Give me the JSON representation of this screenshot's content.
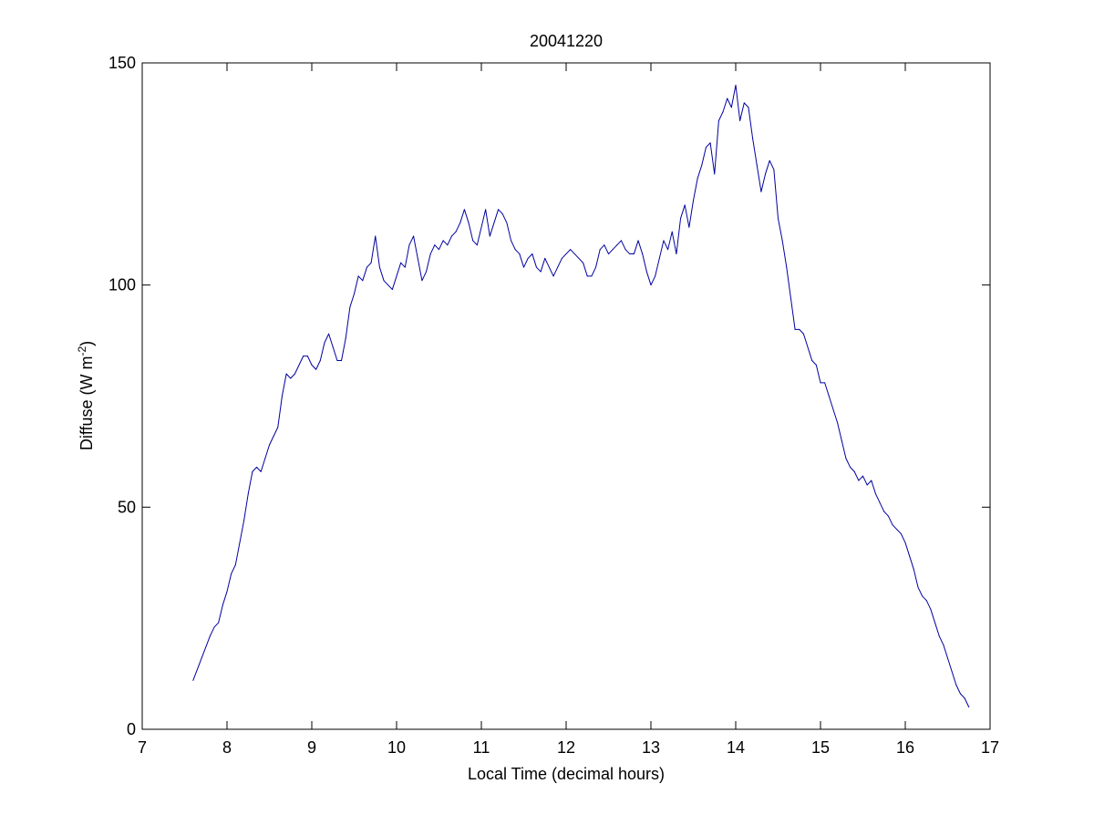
{
  "chart_data": {
    "type": "line",
    "title": "20041220",
    "xlabel": "Local Time (decimal hours)",
    "ylabel": {
      "text_before": "Diffuse (W m",
      "superscript": "-2",
      "text_after": ")"
    },
    "xlim": [
      7,
      17
    ],
    "ylim": [
      0,
      150
    ],
    "xticks": [
      "7",
      "8",
      "9",
      "10",
      "11",
      "12",
      "13",
      "14",
      "15",
      "16",
      "17"
    ],
    "yticks": [
      "0",
      "50",
      "100",
      "150"
    ],
    "grid": false,
    "series": [
      {
        "color": "#0000a0",
        "points": [
          [
            7.6,
            11
          ],
          [
            7.7,
            16
          ],
          [
            7.8,
            21
          ],
          [
            7.85,
            23
          ],
          [
            7.9,
            24
          ],
          [
            7.95,
            28
          ],
          [
            8.0,
            31
          ],
          [
            8.05,
            35
          ],
          [
            8.1,
            37
          ],
          [
            8.15,
            42
          ],
          [
            8.2,
            47
          ],
          [
            8.25,
            53
          ],
          [
            8.3,
            58
          ],
          [
            8.35,
            59
          ],
          [
            8.4,
            58
          ],
          [
            8.45,
            61
          ],
          [
            8.5,
            64
          ],
          [
            8.55,
            66
          ],
          [
            8.6,
            68
          ],
          [
            8.65,
            75
          ],
          [
            8.7,
            80
          ],
          [
            8.75,
            79
          ],
          [
            8.8,
            80
          ],
          [
            8.85,
            82
          ],
          [
            8.9,
            84
          ],
          [
            8.95,
            84
          ],
          [
            9.0,
            82
          ],
          [
            9.05,
            81
          ],
          [
            9.1,
            83
          ],
          [
            9.15,
            87
          ],
          [
            9.2,
            89
          ],
          [
            9.25,
            86
          ],
          [
            9.3,
            83
          ],
          [
            9.35,
            83
          ],
          [
            9.4,
            88
          ],
          [
            9.45,
            95
          ],
          [
            9.5,
            98
          ],
          [
            9.55,
            102
          ],
          [
            9.6,
            101
          ],
          [
            9.65,
            104
          ],
          [
            9.7,
            105
          ],
          [
            9.75,
            111
          ],
          [
            9.8,
            104
          ],
          [
            9.85,
            101
          ],
          [
            9.9,
            100
          ],
          [
            9.95,
            99
          ],
          [
            10.0,
            102
          ],
          [
            10.05,
            105
          ],
          [
            10.1,
            104
          ],
          [
            10.15,
            109
          ],
          [
            10.2,
            111
          ],
          [
            10.25,
            106
          ],
          [
            10.3,
            101
          ],
          [
            10.35,
            103
          ],
          [
            10.4,
            107
          ],
          [
            10.45,
            109
          ],
          [
            10.5,
            108
          ],
          [
            10.55,
            110
          ],
          [
            10.6,
            109
          ],
          [
            10.65,
            111
          ],
          [
            10.7,
            112
          ],
          [
            10.75,
            114
          ],
          [
            10.8,
            117
          ],
          [
            10.85,
            114
          ],
          [
            10.9,
            110
          ],
          [
            10.95,
            109
          ],
          [
            11.0,
            113
          ],
          [
            11.05,
            117
          ],
          [
            11.1,
            111
          ],
          [
            11.15,
            114
          ],
          [
            11.2,
            117
          ],
          [
            11.25,
            116
          ],
          [
            11.3,
            114
          ],
          [
            11.35,
            110
          ],
          [
            11.4,
            108
          ],
          [
            11.45,
            107
          ],
          [
            11.5,
            104
          ],
          [
            11.55,
            106
          ],
          [
            11.6,
            107
          ],
          [
            11.65,
            104
          ],
          [
            11.7,
            103
          ],
          [
            11.75,
            106
          ],
          [
            11.8,
            104
          ],
          [
            11.85,
            102
          ],
          [
            11.9,
            104
          ],
          [
            11.95,
            106
          ],
          [
            12.0,
            107
          ],
          [
            12.05,
            108
          ],
          [
            12.1,
            107
          ],
          [
            12.15,
            106
          ],
          [
            12.2,
            105
          ],
          [
            12.25,
            102
          ],
          [
            12.3,
            102
          ],
          [
            12.35,
            104
          ],
          [
            12.4,
            108
          ],
          [
            12.45,
            109
          ],
          [
            12.5,
            107
          ],
          [
            12.55,
            108
          ],
          [
            12.6,
            109
          ],
          [
            12.65,
            110
          ],
          [
            12.7,
            108
          ],
          [
            12.75,
            107
          ],
          [
            12.8,
            107
          ],
          [
            12.85,
            110
          ],
          [
            12.9,
            107
          ],
          [
            12.95,
            103
          ],
          [
            13.0,
            100
          ],
          [
            13.05,
            102
          ],
          [
            13.1,
            106
          ],
          [
            13.15,
            110
          ],
          [
            13.2,
            108
          ],
          [
            13.25,
            112
          ],
          [
            13.3,
            107
          ],
          [
            13.35,
            115
          ],
          [
            13.4,
            118
          ],
          [
            13.45,
            113
          ],
          [
            13.5,
            119
          ],
          [
            13.55,
            124
          ],
          [
            13.6,
            127
          ],
          [
            13.65,
            131
          ],
          [
            13.7,
            132
          ],
          [
            13.75,
            125
          ],
          [
            13.8,
            137
          ],
          [
            13.85,
            139
          ],
          [
            13.9,
            142
          ],
          [
            13.95,
            140
          ],
          [
            14.0,
            145
          ],
          [
            14.05,
            137
          ],
          [
            14.1,
            141
          ],
          [
            14.15,
            140
          ],
          [
            14.2,
            133
          ],
          [
            14.25,
            127
          ],
          [
            14.3,
            121
          ],
          [
            14.35,
            125
          ],
          [
            14.4,
            128
          ],
          [
            14.45,
            126
          ],
          [
            14.5,
            115
          ],
          [
            14.55,
            110
          ],
          [
            14.6,
            104
          ],
          [
            14.65,
            97
          ],
          [
            14.7,
            90
          ],
          [
            14.75,
            90
          ],
          [
            14.8,
            89
          ],
          [
            14.85,
            86
          ],
          [
            14.9,
            83
          ],
          [
            14.95,
            82
          ],
          [
            15.0,
            78
          ],
          [
            15.05,
            78
          ],
          [
            15.1,
            75
          ],
          [
            15.15,
            72
          ],
          [
            15.2,
            69
          ],
          [
            15.25,
            65
          ],
          [
            15.3,
            61
          ],
          [
            15.35,
            59
          ],
          [
            15.4,
            58
          ],
          [
            15.45,
            56
          ],
          [
            15.5,
            57
          ],
          [
            15.55,
            55
          ],
          [
            15.6,
            56
          ],
          [
            15.65,
            53
          ],
          [
            15.7,
            51
          ],
          [
            15.75,
            49
          ],
          [
            15.8,
            48
          ],
          [
            15.85,
            46
          ],
          [
            15.9,
            45
          ],
          [
            15.95,
            44
          ],
          [
            16.0,
            42
          ],
          [
            16.05,
            39
          ],
          [
            16.1,
            36
          ],
          [
            16.15,
            32
          ],
          [
            16.2,
            30
          ],
          [
            16.25,
            29
          ],
          [
            16.3,
            27
          ],
          [
            16.35,
            24
          ],
          [
            16.4,
            21
          ],
          [
            16.45,
            19
          ],
          [
            16.5,
            16
          ],
          [
            16.55,
            13
          ],
          [
            16.6,
            10
          ],
          [
            16.65,
            8
          ],
          [
            16.7,
            7
          ],
          [
            16.75,
            5
          ]
        ]
      }
    ]
  }
}
